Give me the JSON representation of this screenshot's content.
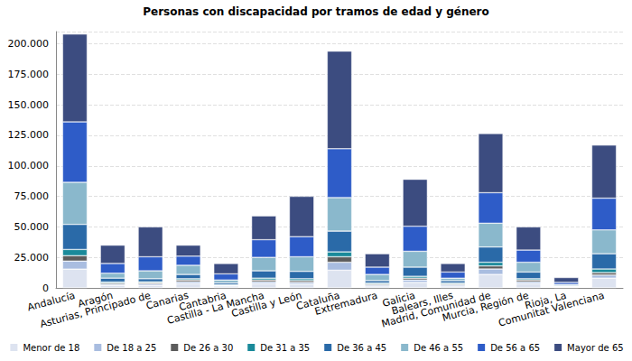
{
  "chart_data": {
    "type": "bar",
    "title": "Personas con discapacidad por tramos de edad y género",
    "stacked": true,
    "grid": true,
    "legend": "bottom",
    "categories": [
      "Andalucía",
      "Aragón",
      "Asturias, Principado de",
      "Canarias",
      "Cantabria",
      "Castilla - La Mancha",
      "Castilla y León",
      "Cataluña",
      "Extremadura",
      "Galicia",
      "Balears, Illes",
      "Madrid, Comunidad de",
      "Murcia, Región de",
      "Rioja, La",
      "Comunitat Valenciana"
    ],
    "ylim": [
      0,
      210000
    ],
    "yticks": [
      0,
      {
        "value": 25000,
        "label": "25.000"
      },
      {
        "value": 50000,
        "label": "50.000"
      },
      {
        "value": 75000,
        "label": "75.000"
      },
      {
        "value": 100000,
        "label": "100.000"
      },
      {
        "value": 125000,
        "label": "125.000"
      },
      {
        "value": 150000,
        "label": "150.000"
      },
      {
        "value": 175000,
        "label": "175.000"
      },
      {
        "value": 200000,
        "label": "200.000"
      }
    ],
    "series": [
      {
        "name": "Menor de 18",
        "color": "#dde3f0",
        "values": [
          15400,
          2000,
          2000,
          3500,
          1000,
          3500,
          3000,
          14500,
          1500,
          4500,
          1500,
          11000,
          3500,
          500,
          8000
        ]
      },
      {
        "name": "De 18 a 25",
        "color": "#a9bde0",
        "values": [
          6600,
          1000,
          1200,
          1500,
          600,
          1500,
          1500,
          6500,
          1000,
          2000,
          1000,
          4500,
          1500,
          300,
          2500
        ]
      },
      {
        "name": "De 26 a 30",
        "color": "#5c5c5c",
        "values": [
          4400,
          1000,
          1000,
          1500,
          500,
          1500,
          1500,
          4500,
          800,
          1500,
          800,
          2500,
          1500,
          300,
          2000
        ]
      },
      {
        "name": "De 31 a 35",
        "color": "#1a8a9a",
        "values": [
          5100,
          800,
          800,
          1000,
          400,
          1500,
          1500,
          4000,
          700,
          1500,
          700,
          3000,
          1000,
          200,
          3000
        ]
      },
      {
        "name": "De 36 a 45",
        "color": "#2a6aa8",
        "values": [
          20500,
          3200,
          2500,
          3500,
          1500,
          6000,
          6000,
          17000,
          2000,
          7500,
          2000,
          12500,
          5500,
          700,
          12500
        ]
      },
      {
        "name": "De 46 a 55",
        "color": "#8ab8cc",
        "values": [
          34500,
          4000,
          6500,
          7500,
          2500,
          11000,
          12000,
          27500,
          5000,
          13000,
          2000,
          19500,
          8000,
          800,
          19500
        ]
      },
      {
        "name": "De 56 a 65",
        "color": "#2e5cc8",
        "values": [
          49500,
          8000,
          11500,
          7500,
          5000,
          14500,
          16500,
          40000,
          6000,
          20500,
          5000,
          25000,
          10000,
          1700,
          26000
        ]
      },
      {
        "name": "Mayor de 65",
        "color": "#3c4c80",
        "values": [
          72000,
          15000,
          24500,
          9000,
          8500,
          19500,
          33000,
          80000,
          11000,
          38500,
          7000,
          48500,
          19000,
          4000,
          43500
        ]
      }
    ]
  }
}
